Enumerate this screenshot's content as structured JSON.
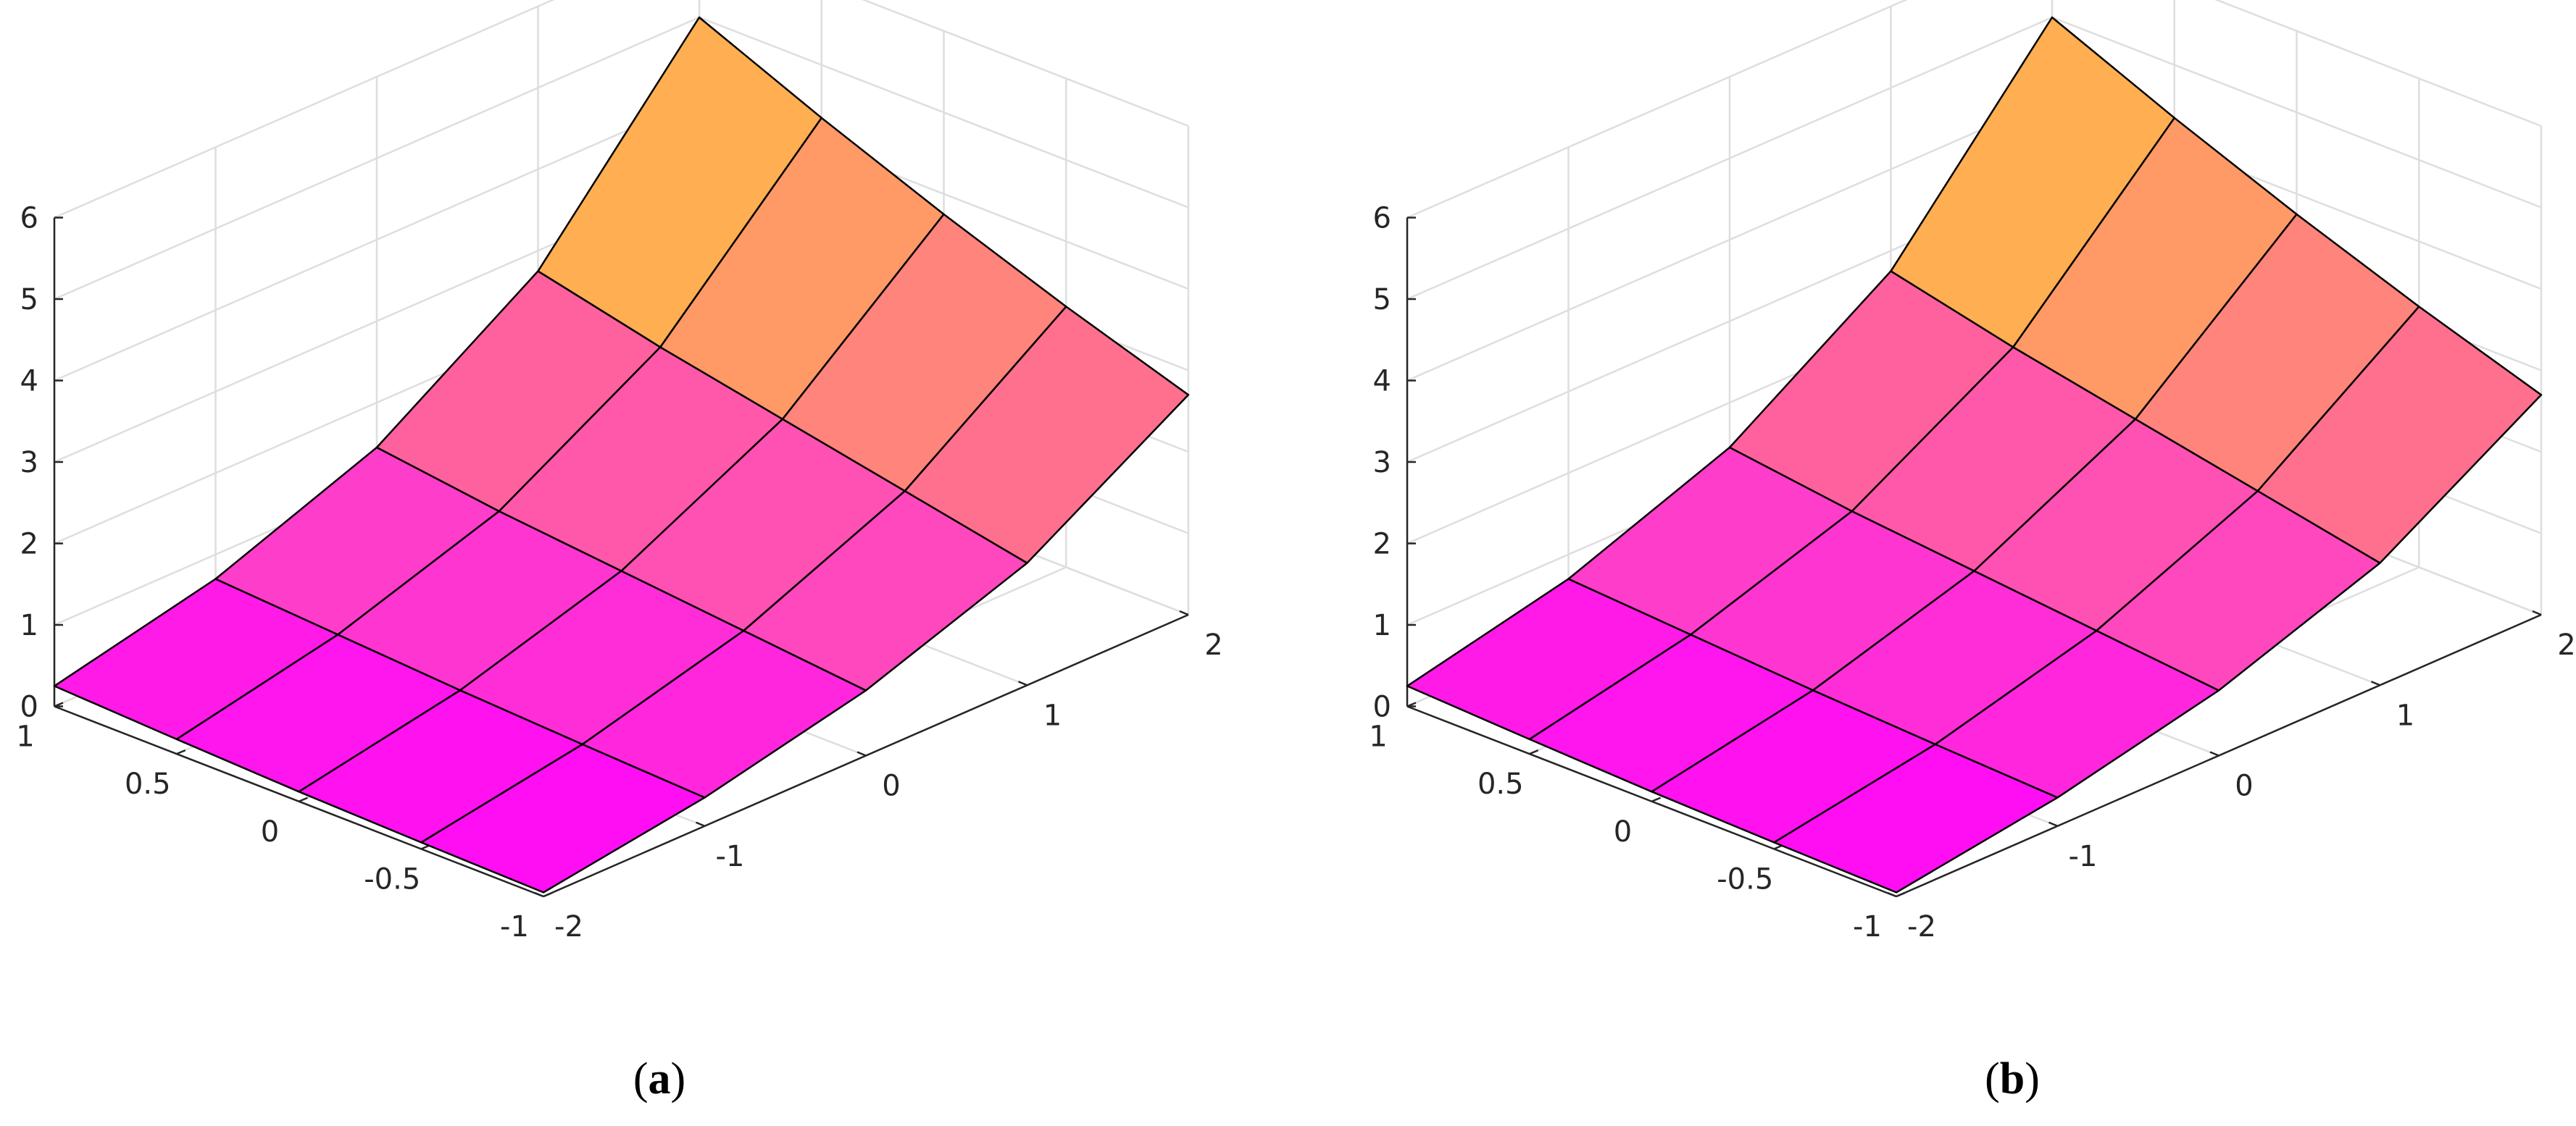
{
  "chart_data": [
    {
      "type": "surface",
      "panel_label": "a",
      "x": [
        -2,
        -1,
        0,
        1,
        2
      ],
      "y": [
        -1,
        -0.5,
        0,
        0.5,
        1
      ],
      "z_rows_by_x": [
        [
          0.05,
          0.08,
          0.12,
          0.18,
          0.25
        ],
        [
          0.35,
          0.42,
          0.5,
          0.6,
          0.7
        ],
        [
          0.8,
          0.95,
          1.1,
          1.25,
          1.45
        ],
        [
          1.5,
          1.8,
          2.1,
          2.4,
          2.75
        ],
        [
          2.7,
          3.2,
          3.75,
          4.35,
          5.0
        ]
      ],
      "xlim": [
        -2,
        2
      ],
      "ylim": [
        -1,
        1
      ],
      "zlim": [
        0,
        6
      ],
      "xticks": [
        "-2",
        "-1",
        "0",
        "1",
        "2"
      ],
      "yticks": [
        "-1",
        "-0.5",
        "0",
        "0.5",
        "1"
      ],
      "zticks": [
        "0",
        "1",
        "2",
        "3",
        "4",
        "5",
        "6"
      ],
      "colormap": [
        "#ff00ff",
        "#ff40c8",
        "#ff6699",
        "#ff9966",
        "#ffc83a"
      ],
      "grid": true
    },
    {
      "type": "surface",
      "panel_label": "b",
      "x": [
        -2,
        -1,
        0,
        1,
        2
      ],
      "y": [
        -1,
        -0.5,
        0,
        0.5,
        1
      ],
      "z_rows_by_x": [
        [
          0.05,
          0.08,
          0.12,
          0.18,
          0.25
        ],
        [
          0.35,
          0.42,
          0.5,
          0.6,
          0.7
        ],
        [
          0.8,
          0.95,
          1.1,
          1.25,
          1.45
        ],
        [
          1.5,
          1.8,
          2.1,
          2.4,
          2.75
        ],
        [
          2.7,
          3.2,
          3.75,
          4.35,
          5.0
        ]
      ],
      "xlim": [
        -2,
        2
      ],
      "ylim": [
        -1,
        1
      ],
      "zlim": [
        0,
        6
      ],
      "xticks": [
        "-2",
        "-1",
        "0",
        "1",
        "2"
      ],
      "yticks": [
        "-1",
        "-0.5",
        "0",
        "0.5",
        "1"
      ],
      "zticks": [
        "0",
        "1",
        "2",
        "3",
        "4",
        "5",
        "6"
      ],
      "colormap": [
        "#ff00ff",
        "#ff40c8",
        "#ff6699",
        "#ff9966",
        "#ffc83a"
      ],
      "grid": true
    }
  ]
}
